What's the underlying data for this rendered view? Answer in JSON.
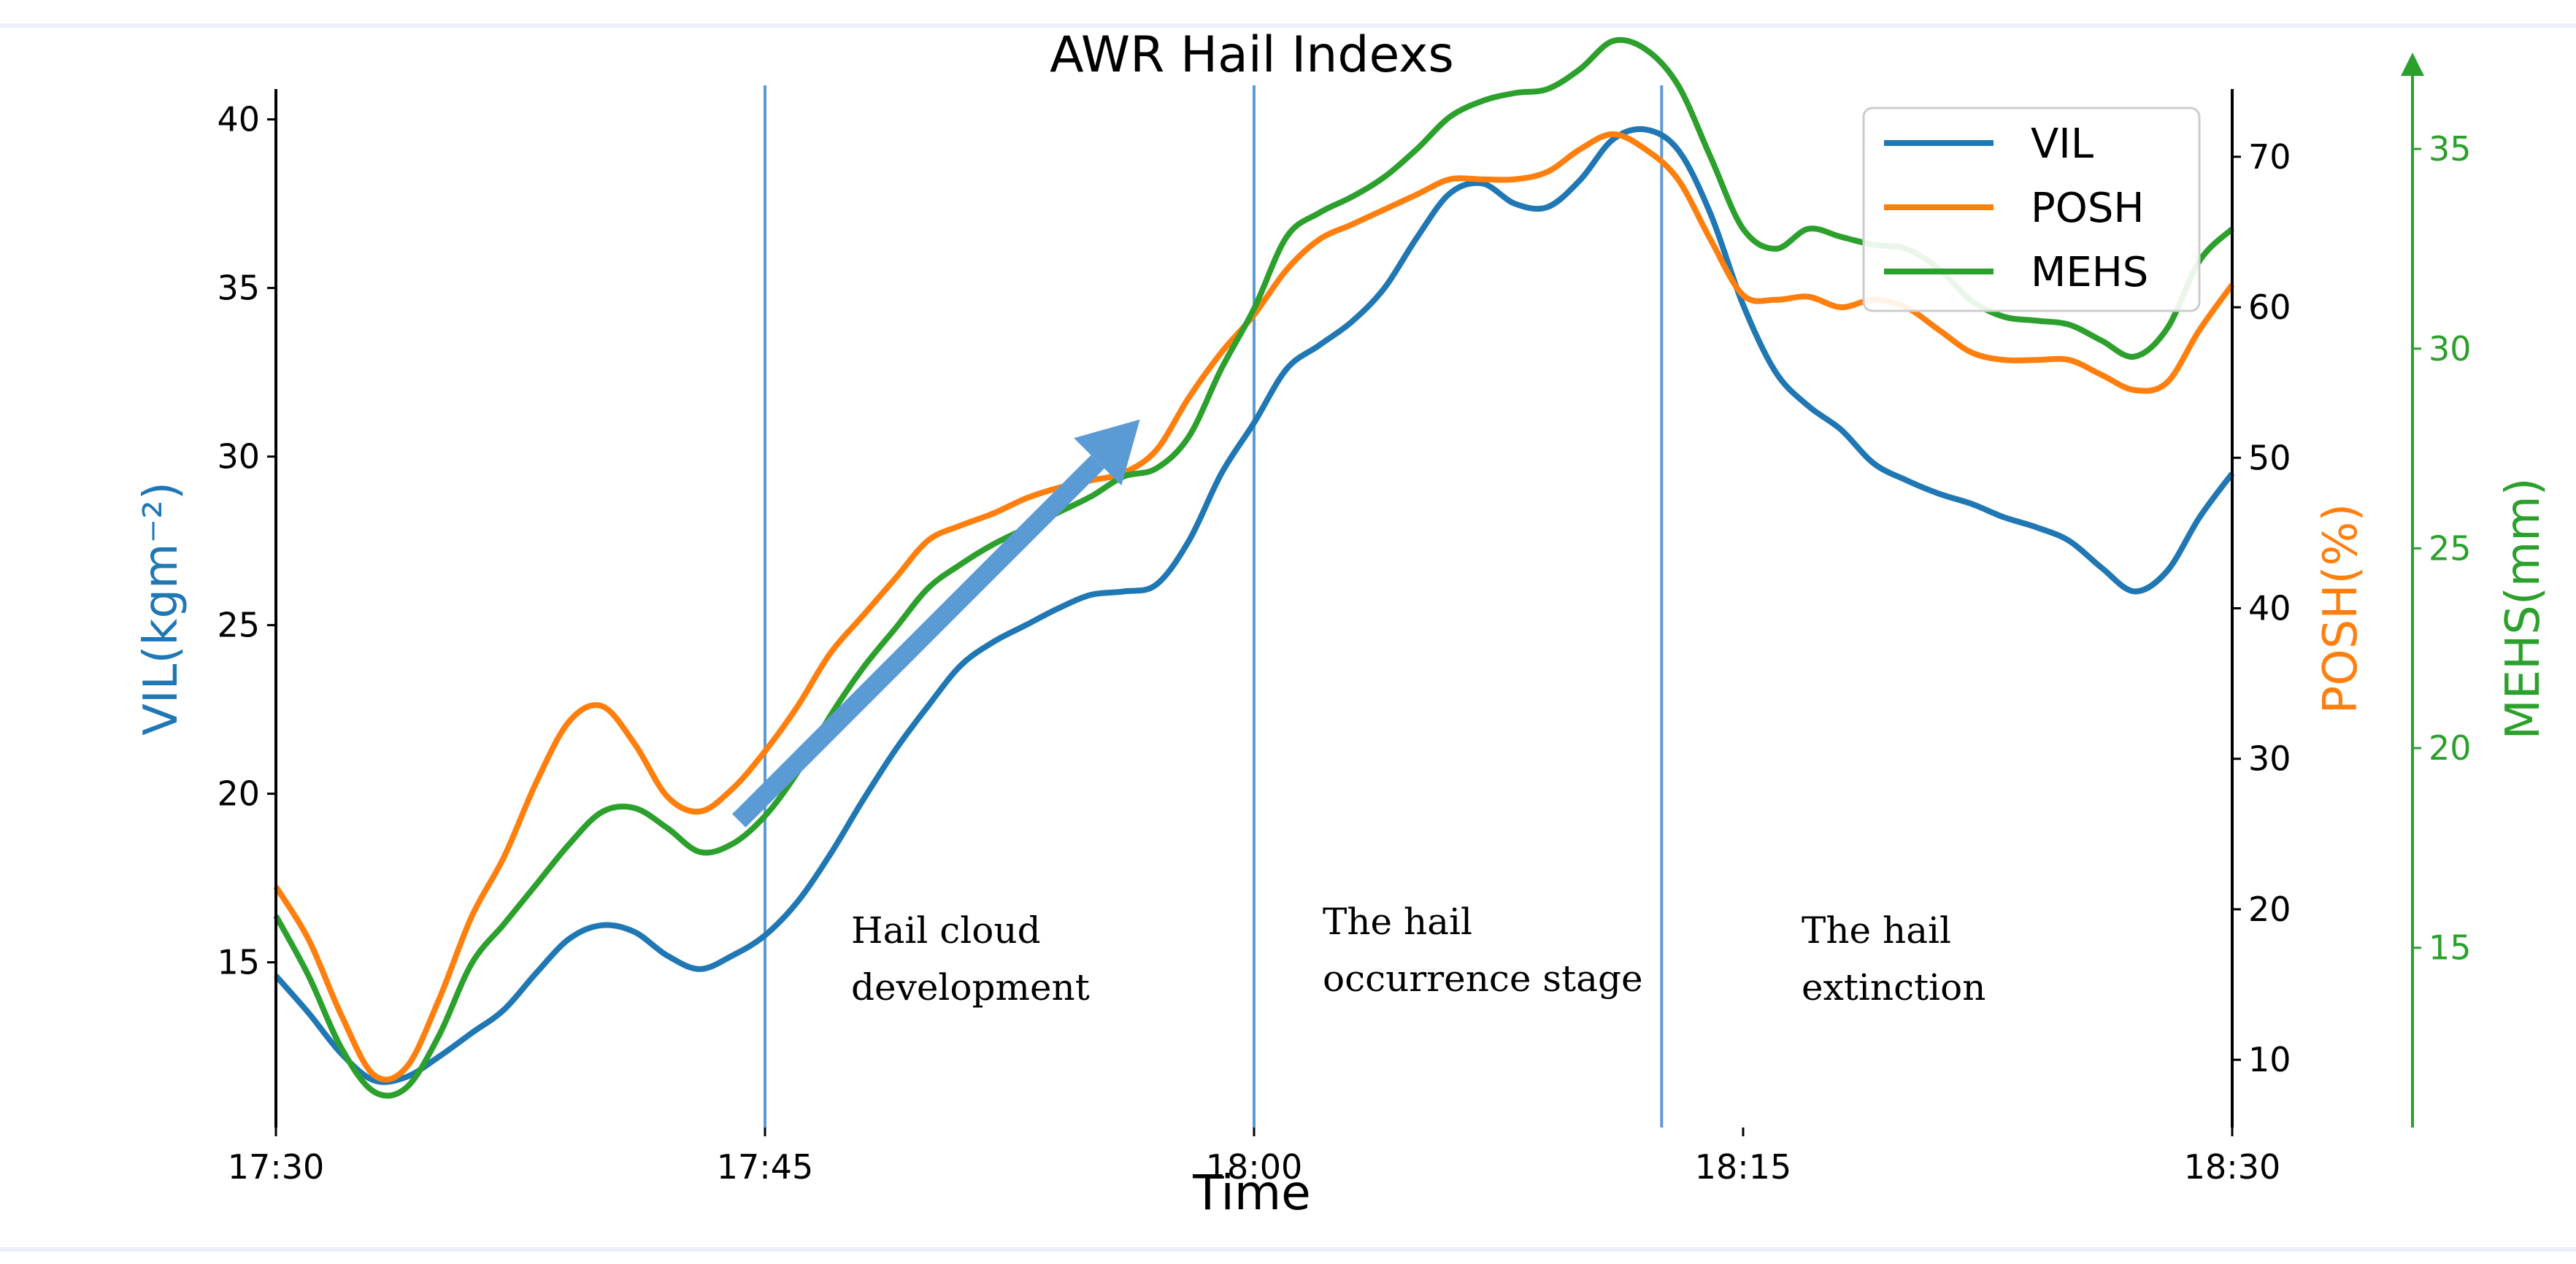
{
  "chart_data": {
    "type": "line",
    "title": "AWR Hail Indexs",
    "xlabel": "Time",
    "x": [
      0,
      1,
      2,
      3,
      4,
      5,
      6,
      7,
      8,
      9,
      10,
      11,
      12,
      13,
      14,
      15,
      16,
      17,
      18,
      19,
      20,
      21,
      22,
      23,
      24,
      25,
      26,
      27,
      28,
      29,
      30,
      31,
      32,
      33,
      34,
      35,
      36,
      37,
      38,
      39,
      40,
      41,
      42,
      43,
      44,
      45,
      46,
      47,
      48,
      49,
      50,
      51,
      52,
      53,
      54,
      55,
      56,
      57,
      58,
      59,
      60
    ],
    "xlim": [
      0,
      60
    ],
    "x_ticks": [
      {
        "value": 0,
        "label": "17:30"
      },
      {
        "value": 15,
        "label": "17:45"
      },
      {
        "value": 30,
        "label": "18:00"
      },
      {
        "value": 45,
        "label": "18:15"
      },
      {
        "value": 60,
        "label": "18:30"
      }
    ],
    "axes": {
      "left": {
        "label": "VIL(kgm⁻²)",
        "color": "#1f77b4",
        "ylim": [
          10.1,
          40.9
        ],
        "ticks": [
          15,
          20,
          25,
          30,
          35,
          40
        ]
      },
      "right1": {
        "label": "POSH(%)",
        "color": "#ff7f0e",
        "ylim": [
          5.5,
          74.5
        ],
        "ticks": [
          10,
          20,
          30,
          40,
          50,
          60,
          70
        ]
      },
      "right2": {
        "label": "MEHS(mm)",
        "color": "#2ca02c",
        "ylim": [
          10.5,
          36.5
        ],
        "ticks": [
          15,
          20,
          25,
          30,
          35
        ]
      }
    },
    "series": [
      {
        "name": "VIL",
        "axis": "left",
        "color": "#1f77b4",
        "values": [
          14.6,
          13.5,
          12.3,
          11.5,
          11.6,
          12.2,
          12.9,
          13.6,
          14.7,
          15.7,
          16.1,
          15.9,
          15.2,
          14.8,
          15.2,
          15.8,
          16.8,
          18.2,
          19.8,
          21.3,
          22.6,
          23.8,
          24.5,
          25.0,
          25.5,
          25.9,
          26.0,
          26.2,
          27.5,
          29.5,
          31.0,
          32.6,
          33.3,
          34.0,
          35.0,
          36.5,
          37.8,
          38.1,
          37.5,
          37.4,
          38.2,
          39.4,
          39.7,
          39.1,
          37.2,
          34.5,
          32.5,
          31.5,
          30.8,
          29.8,
          29.3,
          28.9,
          28.6,
          28.2,
          27.9,
          27.5,
          26.7,
          26.0,
          26.6,
          28.2,
          29.5
        ]
      },
      {
        "name": "POSH",
        "axis": "right1",
        "color": "#ff7f0e",
        "values": [
          21.5,
          18.0,
          13.0,
          9.0,
          9.5,
          14.0,
          19.5,
          23.5,
          28.5,
          32.5,
          33.5,
          31.0,
          27.5,
          26.5,
          28.0,
          30.5,
          33.5,
          37.0,
          39.5,
          42.0,
          44.5,
          45.5,
          46.3,
          47.3,
          48.0,
          48.5,
          49.0,
          50.5,
          54.0,
          57.0,
          59.5,
          62.5,
          64.5,
          65.5,
          66.5,
          67.5,
          68.5,
          68.5,
          68.5,
          69.0,
          70.5,
          71.5,
          70.5,
          68.5,
          64.5,
          60.8,
          60.5,
          60.7,
          60.0,
          60.5,
          60.0,
          58.5,
          57.0,
          56.5,
          56.5,
          56.5,
          55.5,
          54.5,
          55.0,
          58.5,
          61.5
        ]
      },
      {
        "name": "MEHS",
        "axis": "right2",
        "color": "#2ca02c",
        "values": [
          15.8,
          14.3,
          12.5,
          11.4,
          11.5,
          12.8,
          14.6,
          15.6,
          16.6,
          17.6,
          18.4,
          18.5,
          18.0,
          17.4,
          17.6,
          18.3,
          19.4,
          20.8,
          22.0,
          23.0,
          24.0,
          24.6,
          25.1,
          25.5,
          25.9,
          26.3,
          26.8,
          27.0,
          27.8,
          29.5,
          31.0,
          32.8,
          33.4,
          33.8,
          34.3,
          35.0,
          35.8,
          36.2,
          36.4,
          36.5,
          37.0,
          37.7,
          37.5,
          36.6,
          34.8,
          33.0,
          32.5,
          33.0,
          32.8,
          32.6,
          32.5,
          32.0,
          31.2,
          30.8,
          30.7,
          30.6,
          30.2,
          29.8,
          30.5,
          32.2,
          33.0
        ]
      }
    ],
    "markers": [
      {
        "x": 15,
        "label_lines": [
          "Hail cloud",
          "development"
        ]
      },
      {
        "x": 30,
        "label_lines": [
          "The hail",
          "occurrence stage"
        ]
      },
      {
        "x": 42.5,
        "label_lines": [
          "The hail",
          "extinction"
        ]
      }
    ],
    "trend_arrow": {
      "from": [
        14.2,
        19.2
      ],
      "to": [
        26.5,
        31.1
      ],
      "color": "#5b9bd5"
    },
    "legend": {
      "position": "top-right",
      "entries": [
        "VIL",
        "POSH",
        "MEHS"
      ]
    }
  }
}
